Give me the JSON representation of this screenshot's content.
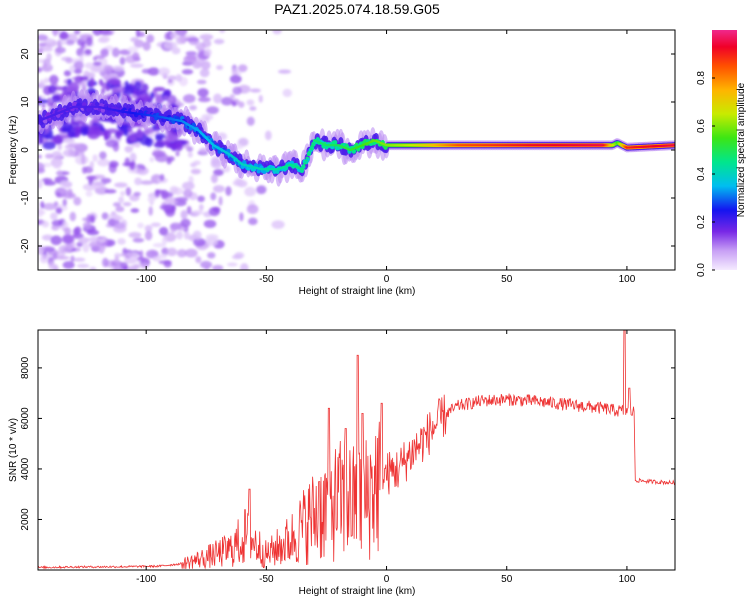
{
  "title": "PAZ1.2025.074.18.59.G05",
  "chart_data": [
    {
      "type": "heatmap",
      "xlabel": "Height of straight line (km)",
      "ylabel": "Frequency (Hz)",
      "xlim": [
        -145,
        120
      ],
      "ylim": [
        -25,
        25
      ],
      "xticks": [
        "-100",
        "-50",
        "0",
        "50",
        "100"
      ],
      "yticks": [
        "-20",
        "-10",
        "0",
        "10",
        "20"
      ],
      "colorbar": {
        "label": "Normalized spectral amplitude",
        "range": [
          0,
          1
        ],
        "ticks": [
          "0.0",
          "0.2",
          "0.4",
          "0.6",
          "0.8"
        ]
      },
      "ridge": [
        {
          "x": -145,
          "f": 6
        },
        {
          "x": -130,
          "f": 9
        },
        {
          "x": -120,
          "f": 9
        },
        {
          "x": -110,
          "f": 8
        },
        {
          "x": -95,
          "f": 7
        },
        {
          "x": -85,
          "f": 6
        },
        {
          "x": -78,
          "f": 4
        },
        {
          "x": -72,
          "f": 1
        },
        {
          "x": -65,
          "f": -1
        },
        {
          "x": -60,
          "f": -3
        },
        {
          "x": -52,
          "f": -4
        },
        {
          "x": -45,
          "f": -4
        },
        {
          "x": -40,
          "f": -3
        },
        {
          "x": -35,
          "f": -4
        },
        {
          "x": -30,
          "f": 2
        },
        {
          "x": -25,
          "f": 1
        },
        {
          "x": -20,
          "f": 1
        },
        {
          "x": -15,
          "f": 0
        },
        {
          "x": -10,
          "f": 1
        },
        {
          "x": -5,
          "f": 2
        },
        {
          "x": 0,
          "f": 1
        },
        {
          "x": 10,
          "f": 1
        },
        {
          "x": 30,
          "f": 1
        },
        {
          "x": 60,
          "f": 1
        },
        {
          "x": 94,
          "f": 1
        },
        {
          "x": 96,
          "f": 1.5
        },
        {
          "x": 100,
          "f": 0.5
        },
        {
          "x": 120,
          "f": 1
        }
      ],
      "ridge_amplitude": [
        {
          "x": -145,
          "a": 0.2
        },
        {
          "x": -120,
          "a": 0.2
        },
        {
          "x": -90,
          "a": 0.3
        },
        {
          "x": -60,
          "a": 0.4
        },
        {
          "x": -40,
          "a": 0.45
        },
        {
          "x": -20,
          "a": 0.5
        },
        {
          "x": 0,
          "a": 0.6
        },
        {
          "x": 10,
          "a": 0.65
        },
        {
          "x": 30,
          "a": 0.85
        },
        {
          "x": 60,
          "a": 0.92
        },
        {
          "x": 90,
          "a": 0.95
        },
        {
          "x": 96,
          "a": 0.55
        },
        {
          "x": 100,
          "a": 0.9
        },
        {
          "x": 120,
          "a": 0.95
        }
      ]
    },
    {
      "type": "line",
      "xlabel": "Height of straight line (km)",
      "ylabel": "SNR (10 * v/v)",
      "xlim": [
        -145,
        120
      ],
      "ylim": [
        0,
        9500
      ],
      "xticks": [
        "-100",
        "-50",
        "0",
        "50",
        "100"
      ],
      "yticks": [
        "2000",
        "4000",
        "6000",
        "8000"
      ],
      "color": "#ee3333",
      "envelope": [
        {
          "x": -145,
          "y": 100
        },
        {
          "x": -130,
          "y": 120
        },
        {
          "x": -110,
          "y": 130
        },
        {
          "x": -95,
          "y": 150
        },
        {
          "x": -85,
          "y": 250
        },
        {
          "x": -75,
          "y": 500
        },
        {
          "x": -65,
          "y": 800
        },
        {
          "x": -58,
          "y": 1400
        },
        {
          "x": -50,
          "y": 600
        },
        {
          "x": -40,
          "y": 1200
        },
        {
          "x": -32,
          "y": 2000
        },
        {
          "x": -25,
          "y": 2500
        },
        {
          "x": -18,
          "y": 2800
        },
        {
          "x": -12,
          "y": 2600
        },
        {
          "x": -8,
          "y": 2900
        },
        {
          "x": -5,
          "y": 3400
        },
        {
          "x": 0,
          "y": 3800
        },
        {
          "x": 5,
          "y": 4000
        },
        {
          "x": 10,
          "y": 4600
        },
        {
          "x": 15,
          "y": 5100
        },
        {
          "x": 20,
          "y": 5700
        },
        {
          "x": 25,
          "y": 6200
        },
        {
          "x": 30,
          "y": 6500
        },
        {
          "x": 40,
          "y": 6700
        },
        {
          "x": 50,
          "y": 6750
        },
        {
          "x": 60,
          "y": 6700
        },
        {
          "x": 70,
          "y": 6600
        },
        {
          "x": 80,
          "y": 6500
        },
        {
          "x": 90,
          "y": 6400
        },
        {
          "x": 96,
          "y": 6300
        },
        {
          "x": 100,
          "y": 6300
        },
        {
          "x": 103,
          "y": 6250
        },
        {
          "x": 103.5,
          "y": 3550
        },
        {
          "x": 110,
          "y": 3500
        },
        {
          "x": 120,
          "y": 3450
        }
      ],
      "spikes": [
        {
          "x": -57,
          "y": 3200
        },
        {
          "x": -28,
          "y": 3500
        },
        {
          "x": -24,
          "y": 6400
        },
        {
          "x": -17,
          "y": 5600
        },
        {
          "x": -12,
          "y": 8500
        },
        {
          "x": -10,
          "y": 6200
        },
        {
          "x": -2,
          "y": 6600
        },
        {
          "x": 99,
          "y": 9500
        },
        {
          "x": 101,
          "y": 7200
        }
      ]
    }
  ]
}
